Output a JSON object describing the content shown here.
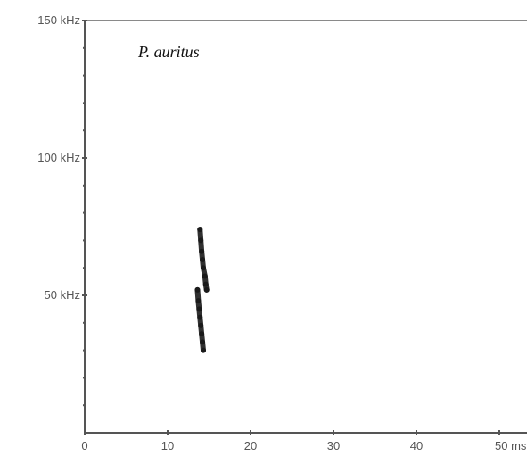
{
  "chart_data": {
    "type": "scatter",
    "title": "P. auritus",
    "xlabel": "",
    "ylabel": "",
    "xlim": [
      0,
      52
    ],
    "ylim": [
      0,
      150
    ],
    "x_ticks": [
      0,
      10,
      20,
      30,
      40,
      50
    ],
    "x_tick_labels": [
      "0",
      "10",
      "20",
      "30",
      "40",
      "50 ms"
    ],
    "y_ticks": [
      50,
      100,
      150
    ],
    "y_tick_labels": [
      "50 kHz",
      "100 kHz",
      "150 kHz"
    ],
    "grid": false,
    "series": [
      {
        "points": [
          {
            "x": 13.9,
            "y": 74
          },
          {
            "x": 14.0,
            "y": 70
          },
          {
            "x": 14.1,
            "y": 66
          },
          {
            "x": 14.2,
            "y": 63
          },
          {
            "x": 14.3,
            "y": 60
          },
          {
            "x": 14.5,
            "y": 57
          },
          {
            "x": 14.6,
            "y": 54
          },
          {
            "x": 14.7,
            "y": 52
          }
        ]
      },
      {
        "points": [
          {
            "x": 13.6,
            "y": 52
          },
          {
            "x": 13.7,
            "y": 48
          },
          {
            "x": 13.8,
            "y": 45
          },
          {
            "x": 13.9,
            "y": 42
          },
          {
            "x": 14.0,
            "y": 39
          },
          {
            "x": 14.1,
            "y": 36
          },
          {
            "x": 14.2,
            "y": 33
          },
          {
            "x": 14.3,
            "y": 30
          }
        ]
      }
    ]
  },
  "colors": {
    "ink": "#1a1a1a",
    "axis": "#555555",
    "frame_top": "#8a8a8a"
  }
}
